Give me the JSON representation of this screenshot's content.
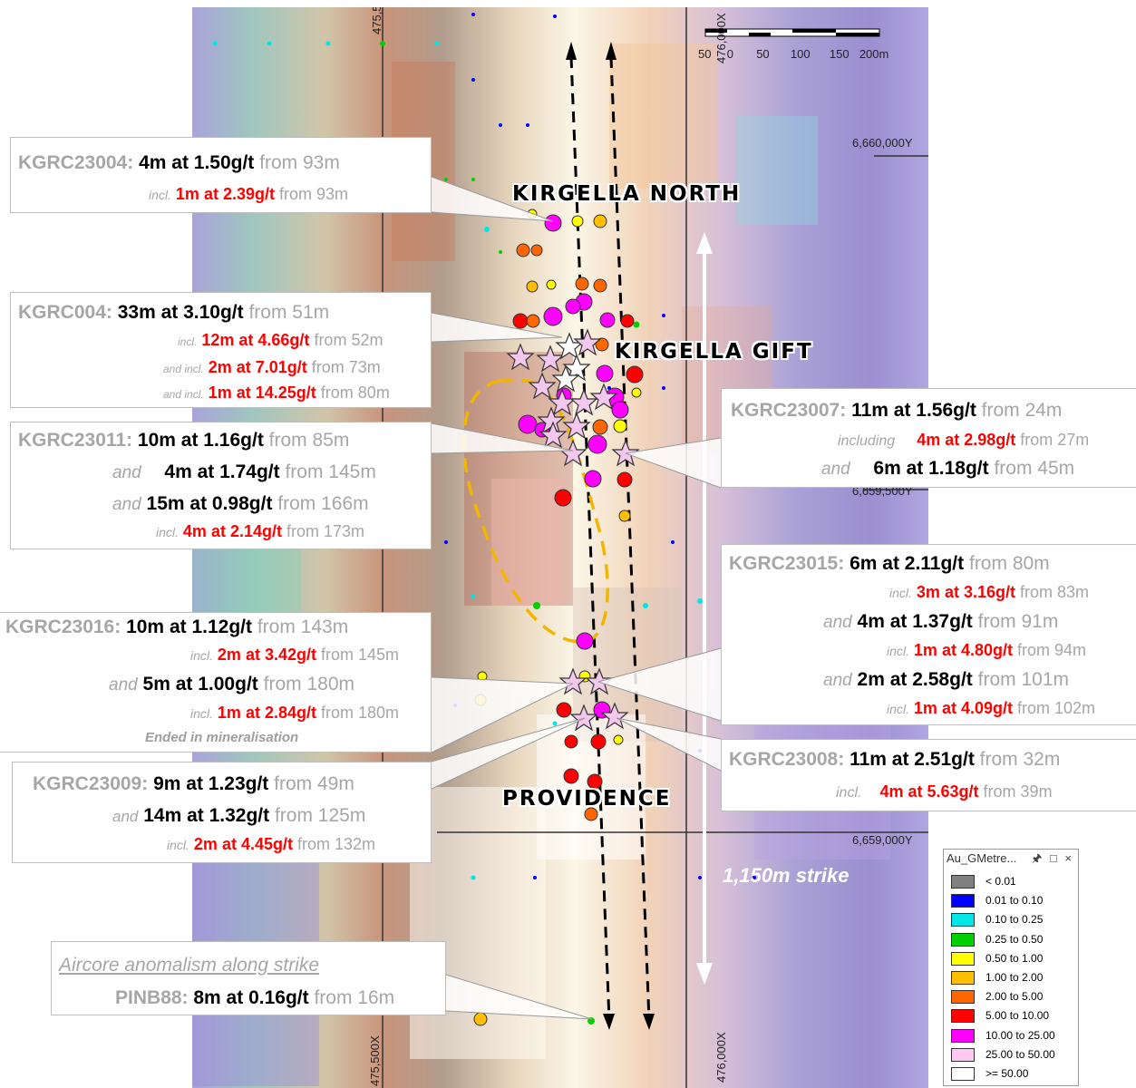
{
  "coordinates": {
    "x_left": "475,500X",
    "x_right": "476,000X",
    "y_top": "6,660,000Y",
    "y_mid": "6,659,500Y",
    "y_bottom": "6,659,000Y"
  },
  "scale_bar": {
    "labels": [
      "50",
      "0",
      "50",
      "100",
      "150",
      "200m"
    ]
  },
  "prospects": {
    "north": "KIRGELLA NORTH",
    "gift": "KIRGELLA GIFT",
    "providence": "PROVIDENCE"
  },
  "strike_label": "1,150m strike",
  "callouts": {
    "kgrc23004": {
      "hole": "KGRC23004:",
      "main": "4m at 1.50g/t",
      "from": "from 93m",
      "l2_prefix": "incl.",
      "l2_red": "1m at 2.39g/t",
      "l2_from": "from 93m"
    },
    "kgrc004": {
      "hole": "KGRC004:",
      "main": "33m at 3.10g/t",
      "from": "from 51m",
      "l2_prefix": "incl.",
      "l2_red": "12m at 4.66g/t",
      "l2_from": "from 52m",
      "l3_prefix": "and incl.",
      "l3_red": "2m at 7.01g/t",
      "l3_from": "from 73m",
      "l4_prefix": "and incl.",
      "l4_red": "1m at 14.25g/t",
      "l4_from": "from 80m"
    },
    "kgrc23011": {
      "hole": "KGRC23011:",
      "main": "10m at 1.16g/t",
      "from": "from 85m",
      "l2_prefix": "and",
      "l2_main": "4m at 1.74g/t",
      "l2_from": "from 145m",
      "l3_prefix": "and",
      "l3_main": "15m at 0.98g/t",
      "l3_from": "from 166m",
      "l4_prefix": "incl.",
      "l4_red": "4m at 2.14g/t",
      "l4_from": "from 173m"
    },
    "kgrc23016": {
      "hole": "KGRC23016:",
      "main": "10m at 1.12g/t",
      "from": "from 143m",
      "l2_prefix": "incl.",
      "l2_red": "2m at 3.42g/t",
      "l2_from": "from 145m",
      "l3_prefix": "and",
      "l3_main": "5m at 1.00g/t",
      "l3_from": "from 180m",
      "l4_prefix": "incl.",
      "l4_red": "1m at 2.84g/t",
      "l4_from": "from 180m",
      "note": "Ended in mineralisation"
    },
    "kgrc23009": {
      "hole": "KGRC23009:",
      "main": "9m at 1.23g/t",
      "from": "from 49m",
      "l2_prefix": "and",
      "l2_main": "14m at 1.32g/t",
      "l2_from": "from 125m",
      "l3_prefix": "incl.",
      "l3_red": "2m at 4.45g/t",
      "l3_from": "from 132m"
    },
    "pinb88": {
      "heading": "Aircore anomalism along strike",
      "hole": "PINB88:",
      "main": "8m at 0.16g/t",
      "from": "from 16m"
    },
    "kgrc23007": {
      "hole": "KGRC23007:",
      "main": "11m at 1.56g/t",
      "from": "from 24m",
      "l2_prefix": "including",
      "l2_red": "4m at 2.98g/t",
      "l2_from": "from 27m",
      "l3_prefix": "and",
      "l3_main": "6m at 1.18g/t",
      "l3_from": "from 45m"
    },
    "kgrc23015": {
      "hole": "KGRC23015:",
      "main": "6m at 2.11g/t",
      "from": "from 80m",
      "l2_prefix": "incl.",
      "l2_red": "3m at 3.16g/t",
      "l2_from": "from 83m",
      "l3_prefix": "and",
      "l3_main": "4m at 1.37g/t",
      "l3_from": "from 91m",
      "l4_prefix": "incl.",
      "l4_red": "1m at 4.80g/t",
      "l4_from": "from 94m",
      "l5_prefix": "and",
      "l5_main": "2m at 2.58g/t",
      "l5_from": "from 101m",
      "l6_prefix": "incl.",
      "l6_red": "1m at 4.09g/t",
      "l6_from": "from 102m"
    },
    "kgrc23008": {
      "hole": "KGRC23008:",
      "main": "11m at 2.51g/t",
      "from": "from 32m",
      "l2_prefix": "incl.",
      "l2_red": "4m at 5.63g/t",
      "l2_from": "from 39m"
    }
  },
  "legend": {
    "title": "Au_GMetre...",
    "controls": " □ ×",
    "items": [
      {
        "label": "< 0.01",
        "color": "#808080"
      },
      {
        "label": "0.01 to 0.10",
        "color": "#0000ff"
      },
      {
        "label": "0.10 to 0.25",
        "color": "#00e5e5"
      },
      {
        "label": "0.25 to 0.50",
        "color": "#00d000"
      },
      {
        "label": "0.50 to 1.00",
        "color": "#ffff00"
      },
      {
        "label": "1.00 to 2.00",
        "color": "#ffbf00"
      },
      {
        "label": "2.00 to 5.00",
        "color": "#ff6600"
      },
      {
        "label": "5.00 to 10.00",
        "color": "#ff0000"
      },
      {
        "label": "10.00 to 25.00",
        "color": "#ff00ff"
      },
      {
        "label": "25.00 to 50.00",
        "color": "#ffc8f0"
      },
      {
        "label": ">= 50.00",
        "color": "#ffffff"
      }
    ]
  }
}
